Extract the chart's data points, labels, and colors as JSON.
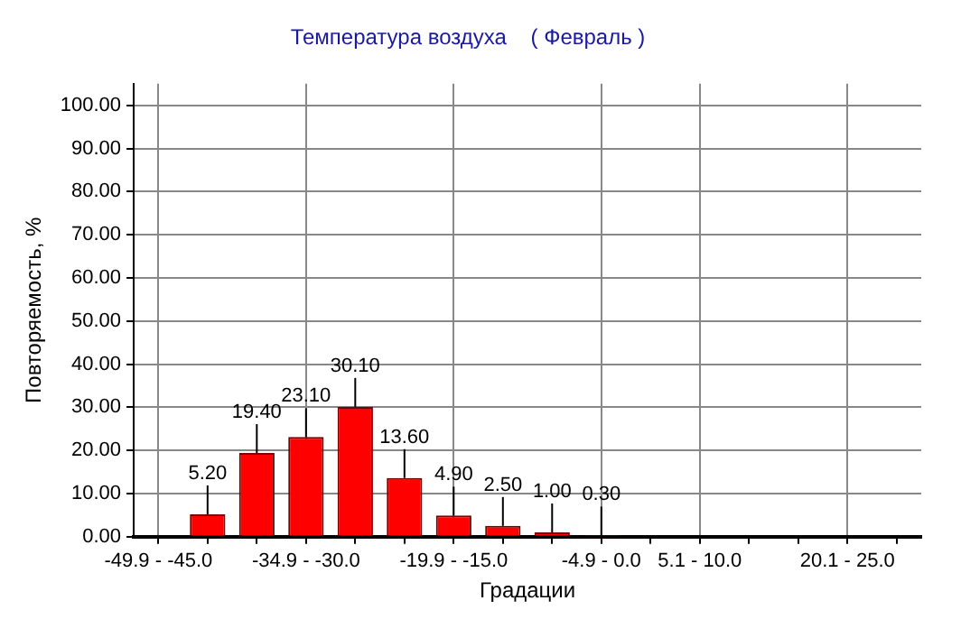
{
  "chart_data": {
    "type": "bar",
    "title": "Температура воздуха    ( Февраль )",
    "xlabel": "Градации",
    "ylabel": "Повторяемость, %",
    "categories": [
      "-49.9 - -45.0",
      null,
      null,
      "-34.9 - -30.0",
      null,
      null,
      "-19.9 - -15.0",
      null,
      null,
      "-4.9 - 0.0",
      null,
      "5.1 - 10.0",
      null,
      null,
      "20.1 - 25.0",
      null
    ],
    "values": [
      null,
      5.2,
      19.4,
      23.1,
      30.1,
      13.6,
      4.9,
      2.5,
      1.0,
      0.3,
      null,
      null,
      null,
      null,
      null,
      null
    ],
    "value_labels": [
      null,
      "5.20",
      "19.40",
      "23.10",
      "30.10",
      "13.60",
      "4.90",
      "2.50",
      "1.00",
      "0.30",
      null,
      null,
      null,
      null,
      null,
      null
    ],
    "color": "#ff0000",
    "ylim": [
      0,
      105
    ],
    "yticks": [
      {
        "value": 0,
        "label": "0.00"
      },
      {
        "value": 10,
        "label": "10.00"
      },
      {
        "value": 20,
        "label": "20.00"
      },
      {
        "value": 30,
        "label": "30.00"
      },
      {
        "value": 40,
        "label": "40.00"
      },
      {
        "value": 50,
        "label": "50.00"
      },
      {
        "value": 60,
        "label": "60.00"
      },
      {
        "value": 70,
        "label": "70.00"
      },
      {
        "value": 80,
        "label": "80.00"
      },
      {
        "value": 90,
        "label": "90.00"
      },
      {
        "value": 100,
        "label": "100.00"
      }
    ],
    "grid": true,
    "legend": false
  }
}
